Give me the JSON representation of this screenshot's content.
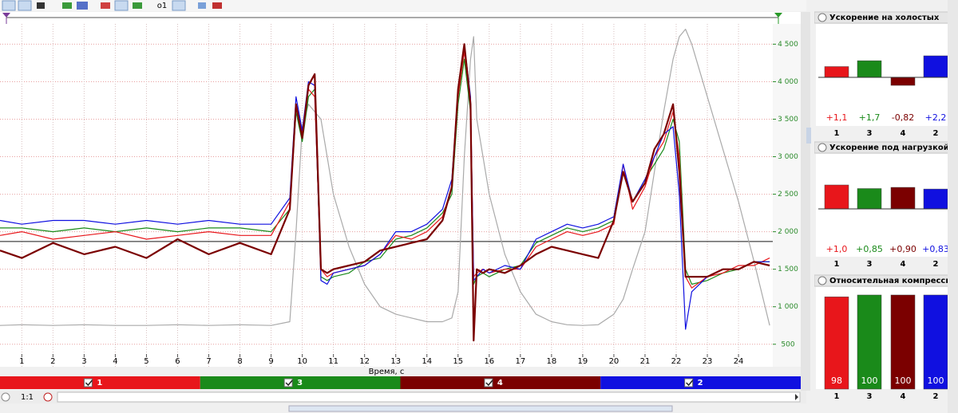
{
  "toolbar_label": "o1",
  "chart_data": {
    "type": "line",
    "x_label": "Время, с",
    "x": [
      0.3,
      1,
      2,
      3,
      4,
      5,
      6,
      7,
      8,
      9,
      9.6,
      9.8,
      10,
      10.2,
      10.4,
      10.6,
      10.8,
      11,
      11.5,
      12,
      12.5,
      13,
      13.5,
      14,
      14.5,
      14.8,
      15,
      15.2,
      15.4,
      15.5,
      15.6,
      15.8,
      16,
      16.5,
      17,
      17.5,
      18,
      18.5,
      19,
      19.5,
      20,
      20.3,
      20.6,
      21,
      21.3,
      21.6,
      21.9,
      22.1,
      22.3,
      22.5,
      23,
      23.5,
      24,
      24.5,
      25
    ],
    "xlim": [
      0.3,
      25.1
    ],
    "xticks": [
      1,
      2,
      3,
      4,
      5,
      6,
      7,
      8,
      9,
      10,
      11,
      12,
      13,
      14,
      15,
      16,
      17,
      18,
      19,
      20,
      21,
      22,
      23,
      24
    ],
    "ylim": [
      200,
      4770
    ],
    "yticks": [
      500,
      {
        "value": 1000,
        "label": "1 000"
      },
      {
        "value": 1500,
        "label": "1 500"
      },
      {
        "value": 2000,
        "label": "2 000"
      },
      {
        "value": 2500,
        "label": "2 500"
      },
      {
        "value": 3000,
        "label": "3 000"
      },
      {
        "value": 3500,
        "label": "3 500"
      },
      {
        "value": 4000,
        "label": "4 000"
      },
      {
        "value": 4500,
        "label": "4 500"
      }
    ],
    "grid": true,
    "reference_line": 1870,
    "series": [
      {
        "color": "#aaaaaa",
        "values": [
          750,
          760,
          750,
          760,
          750,
          750,
          760,
          750,
          760,
          750,
          800,
          2000,
          3400,
          3700,
          3600,
          3500,
          3000,
          2500,
          1800,
          1300,
          1000,
          900,
          850,
          800,
          800,
          850,
          1200,
          3000,
          4300,
          4600,
          3500,
          3000,
          2500,
          1700,
          1200,
          900,
          800,
          760,
          750,
          760,
          900,
          1100,
          1500,
          2000,
          2800,
          3600,
          4300,
          4600,
          4700,
          4500,
          3800,
          3100,
          2400,
          1600,
          750
        ]
      },
      {
        "name": "3",
        "color": "#1a8a1a",
        "values": [
          2050,
          2050,
          2000,
          2050,
          2000,
          2050,
          2000,
          2050,
          2050,
          2000,
          2300,
          3600,
          3200,
          3800,
          3900,
          1400,
          1350,
          1400,
          1450,
          1600,
          1650,
          1900,
          1950,
          2050,
          2250,
          2500,
          3700,
          4300,
          3600,
          1300,
          1400,
          1450,
          1400,
          1500,
          1550,
          1850,
          1950,
          2050,
          2000,
          2050,
          2150,
          2800,
          2400,
          2700,
          2900,
          3100,
          3500,
          3200,
          1500,
          1300,
          1350,
          1450,
          1500,
          1600,
          1600
        ]
      },
      {
        "name": "1",
        "color": "#e8161b",
        "values": [
          1950,
          2000,
          1900,
          1950,
          2000,
          1900,
          1950,
          2000,
          1950,
          1950,
          2400,
          3700,
          3300,
          3900,
          3800,
          1500,
          1400,
          1450,
          1500,
          1550,
          1700,
          1950,
          1900,
          2000,
          2200,
          2600,
          3800,
          4400,
          3700,
          1400,
          1450,
          1500,
          1450,
          1500,
          1500,
          1800,
          1900,
          2000,
          1950,
          2000,
          2100,
          2900,
          2300,
          2600,
          3000,
          3200,
          3600,
          3000,
          1400,
          1250,
          1400,
          1450,
          1550,
          1550,
          1650
        ]
      },
      {
        "name": "2",
        "color": "#1010e0",
        "values": [
          2150,
          2100,
          2150,
          2150,
          2100,
          2150,
          2100,
          2150,
          2100,
          2100,
          2450,
          3800,
          3350,
          4000,
          3950,
          1350,
          1300,
          1450,
          1500,
          1550,
          1700,
          2000,
          2000,
          2100,
          2300,
          2700,
          3900,
          4500,
          3800,
          1350,
          1400,
          1500,
          1450,
          1550,
          1500,
          1900,
          2000,
          2100,
          2050,
          2100,
          2200,
          2900,
          2400,
          2700,
          3000,
          3300,
          3400,
          2500,
          700,
          1200,
          1400,
          1500,
          1500,
          1600,
          1600
        ]
      },
      {
        "name": "4",
        "color": "#7b0000",
        "values": [
          1750,
          1650,
          1850,
          1700,
          1800,
          1650,
          1900,
          1700,
          1850,
          1700,
          2300,
          3700,
          3250,
          3950,
          4100,
          1500,
          1450,
          1500,
          1550,
          1600,
          1750,
          1800,
          1850,
          1900,
          2150,
          2600,
          3900,
          4500,
          3700,
          550,
          1500,
          1450,
          1500,
          1450,
          1550,
          1700,
          1800,
          1750,
          1700,
          1650,
          2150,
          2800,
          2400,
          2650,
          3100,
          3300,
          3700,
          2800,
          1400,
          1400,
          1400,
          1500,
          1500,
          1600,
          1550
        ]
      }
    ]
  },
  "cylinders": [
    {
      "label": "1",
      "color": "#e8161b",
      "checked": true
    },
    {
      "label": "3",
      "color": "#1a8a1a",
      "checked": true
    },
    {
      "label": "4",
      "color": "#7b0000",
      "checked": true
    },
    {
      "label": "2",
      "color": "#1010e0",
      "checked": true
    }
  ],
  "zoom_label": "1:1",
  "panels": [
    {
      "type": "bar",
      "title": "Ускорение на холостых",
      "categories": [
        "1",
        "3",
        "4",
        "2"
      ],
      "colors": [
        "#e8161b",
        "#1a8a1a",
        "#7b0000",
        "#1010e0"
      ],
      "values": [
        1.1,
        1.7,
        -0.82,
        2.2
      ],
      "value_labels": [
        "+1,1",
        "+1,7",
        "-0,82",
        "+2,2"
      ]
    },
    {
      "type": "bar",
      "title": "Ускорение под нагрузкой",
      "categories": [
        "1",
        "3",
        "4",
        "2"
      ],
      "colors": [
        "#e8161b",
        "#1a8a1a",
        "#7b0000",
        "#1010e0"
      ],
      "values": [
        1.0,
        0.85,
        0.9,
        0.83
      ],
      "value_labels": [
        "+1,0",
        "+0,85",
        "+0,90",
        "+0,83"
      ]
    },
    {
      "type": "bar",
      "title": "Относительная компресси",
      "categories": [
        "1",
        "3",
        "4",
        "2"
      ],
      "colors": [
        "#e8161b",
        "#1a8a1a",
        "#7b0000",
        "#1010e0"
      ],
      "values": [
        98,
        100,
        100,
        100
      ],
      "labels_inside": true
    }
  ]
}
